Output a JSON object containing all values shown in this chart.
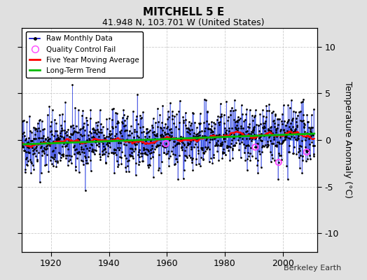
{
  "title": "MITCHELL 5 E",
  "subtitle": "41.948 N, 103.701 W (United States)",
  "ylabel": "Temperature Anomaly (°C)",
  "credit": "Berkeley Earth",
  "ylim": [
    -12,
    12
  ],
  "yticks": [
    -10,
    -5,
    0,
    5,
    10
  ],
  "year_start": 1910,
  "year_end": 2011,
  "xlim_left": 1910,
  "xlim_right": 2012,
  "xticks": [
    1920,
    1940,
    1960,
    1980,
    2000
  ],
  "stem_color": "#6699ff",
  "dot_color": "#000000",
  "line_color": "#0000cc",
  "ma_color": "#ff0000",
  "trend_color": "#00bb00",
  "qc_color": "#ff44ff",
  "bg_color": "#e0e0e0",
  "plot_bg": "#ffffff",
  "grid_color": "#cccccc",
  "seed": 42,
  "noise_std": 1.6,
  "n_qc": 4
}
